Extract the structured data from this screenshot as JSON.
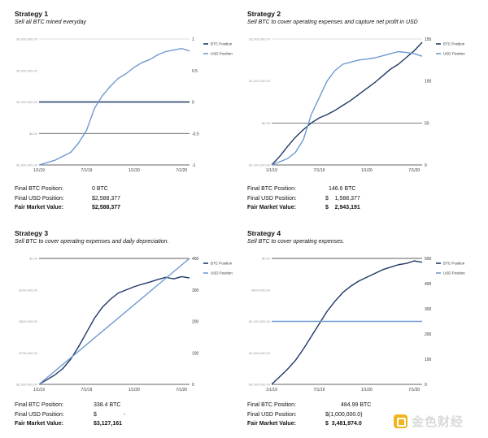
{
  "strategies": [
    {
      "title": "Strategy 1",
      "subtitle": "Sell all BTC mined everyday",
      "summary": [
        {
          "label": "Final BTC Position:",
          "value": "0 BTC",
          "bold": false
        },
        {
          "label": "Final USD Position:",
          "value": "$2,588,377",
          "bold": false
        },
        {
          "label": "Fair Market Value:",
          "value": "$2,588,377",
          "bold": true
        }
      ]
    },
    {
      "title": "Strategy 2",
      "subtitle": "Sell BTC to cover operating expenses and capture net profit in USD",
      "summary": [
        {
          "label": "Final BTC Position:",
          "value": "146.6 BTC",
          "bold": false
        },
        {
          "label": "Final USD Position:",
          "value": "$    1,588,377",
          "bold": false
        },
        {
          "label": "Fair Market Value:",
          "value": "$    2,943,191",
          "bold": true
        }
      ]
    },
    {
      "title": "Strategy 3",
      "subtitle": "Sell BTC to cover operating expenses and daily depreciation.",
      "summary": [
        {
          "label": "Final BTC Position:",
          "value": "338.4 BTC",
          "bold": false
        },
        {
          "label": "Final USD Position:",
          "value": "$                 -",
          "bold": false
        },
        {
          "label": "Fair Market Value:",
          "value": "$3,127,161",
          "bold": true
        }
      ]
    },
    {
      "title": "Strategy 4",
      "subtitle": "Sell BTC to cover operating expenses.",
      "summary": [
        {
          "label": "Final BTC Position:",
          "value": "484.99 BTC",
          "bold": false
        },
        {
          "label": "Final USD Position:",
          "value": "$(1,000,000.0)",
          "bold": false
        },
        {
          "label": "Fair Market Value:",
          "value": "$  3,481,974.0",
          "bold": true
        }
      ]
    }
  ],
  "chart_data": [
    {
      "type": "line",
      "x_tick_labels": [
        "1/1/19",
        "7/1/19",
        "1/1/20",
        "7/1/20"
      ],
      "left_axis": {
        "ticks": [
          -1000000,
          0,
          1000000,
          2000000,
          3000000
        ],
        "tick_labels": [
          "-$1,000,000.00",
          "$0.00",
          "$1,000,000.00",
          "$2,000,000.00",
          "$3,000,000.00"
        ],
        "range": [
          -1000000,
          3000000
        ]
      },
      "right_axis": {
        "ticks": [
          -1,
          -0.5,
          0,
          0.5,
          1
        ],
        "tick_labels": [
          "-1",
          "-0.5",
          "0",
          "0.5",
          "1"
        ],
        "range": [
          -1,
          1
        ]
      },
      "hlines": [
        {
          "axis": "left",
          "value": 0
        },
        {
          "axis": "right",
          "value": 0
        }
      ],
      "legend_position": "right",
      "series": [
        {
          "name": "BTC Position",
          "axis": "right",
          "color": "#1f3864",
          "x": [
            0,
            19
          ],
          "y": [
            0,
            0
          ]
        },
        {
          "name": "USD Position",
          "axis": "left",
          "color": "#6f99d0",
          "x": [
            0,
            2,
            4,
            5,
            6,
            6.5,
            7,
            8,
            9,
            10,
            11,
            12,
            13,
            14,
            15,
            16,
            17,
            18,
            19
          ],
          "y": [
            -1000000,
            -850000,
            -600000,
            -300000,
            100000,
            450000,
            800000,
            1200000,
            1500000,
            1750000,
            1900000,
            2100000,
            2250000,
            2350000,
            2500000,
            2600000,
            2650000,
            2700000,
            2620000
          ]
        }
      ]
    },
    {
      "type": "line",
      "x_tick_labels": [
        "1/1/19",
        "7/1/19",
        "1/1/20",
        "7/1/20"
      ],
      "left_axis": {
        "ticks": [
          -1000000,
          0,
          1000000,
          2000000
        ],
        "tick_labels": [
          "-$1,000,000.00",
          "$0.00",
          "$1,000,000.00",
          "$2,000,000.00"
        ],
        "range": [
          -1000000,
          2000000
        ]
      },
      "right_axis": {
        "ticks": [
          0,
          50,
          100,
          150
        ],
        "tick_labels": [
          "0",
          "50",
          "100",
          "150"
        ],
        "range": [
          0,
          150
        ]
      },
      "hlines": [
        {
          "axis": "left",
          "value": 0
        }
      ],
      "legend_position": "right",
      "series": [
        {
          "name": "BTC Position",
          "axis": "right",
          "color": "#1f3864",
          "x": [
            0,
            1,
            2,
            3,
            4,
            5,
            6,
            7,
            8,
            9,
            10,
            11,
            12,
            13,
            14,
            15,
            16,
            17,
            18,
            19
          ],
          "y": [
            0,
            10,
            22,
            33,
            42,
            50,
            56,
            60,
            65,
            71,
            77,
            84,
            91,
            98,
            106,
            114,
            120,
            128,
            136,
            146
          ]
        },
        {
          "name": "USD Position",
          "axis": "left",
          "color": "#6f99d0",
          "x": [
            0,
            2,
            3,
            4,
            5,
            6,
            7,
            8,
            9,
            10,
            11,
            12,
            13,
            14,
            15,
            16,
            17,
            18,
            19
          ],
          "y": [
            -1000000,
            -850000,
            -700000,
            -400000,
            200000,
            600000,
            1000000,
            1250000,
            1400000,
            1450000,
            1500000,
            1520000,
            1550000,
            1600000,
            1650000,
            1700000,
            1680000,
            1650000,
            1590000
          ]
        }
      ]
    },
    {
      "type": "line",
      "x_tick_labels": [
        "1/1/19",
        "7/1/19",
        "1/1/20",
        "7/1/20"
      ],
      "left_axis": {
        "ticks": [
          -1000000,
          -750000,
          -500000,
          -250000,
          0
        ],
        "tick_labels": [
          "-$1,000,000.00",
          "-$750,000.00",
          "-$500,000.00",
          "-$250,000.00",
          "$0.00"
        ],
        "range": [
          -1000000,
          0
        ]
      },
      "right_axis": {
        "ticks": [
          0,
          100,
          200,
          300,
          400
        ],
        "tick_labels": [
          "0",
          "100",
          "200",
          "300",
          "400"
        ],
        "range": [
          0,
          400
        ]
      },
      "hlines": [
        {
          "axis": "left",
          "value": 0
        }
      ],
      "legend_position": "right",
      "series": [
        {
          "name": "BTC Position",
          "axis": "right",
          "color": "#1f3864",
          "x": [
            0,
            1,
            2,
            3,
            4,
            5,
            6,
            7,
            8,
            9,
            10,
            11,
            12,
            13,
            14,
            15,
            16,
            17,
            18,
            19
          ],
          "y": [
            0,
            15,
            30,
            50,
            80,
            120,
            165,
            210,
            245,
            270,
            290,
            300,
            310,
            318,
            325,
            333,
            340,
            335,
            342,
            338
          ]
        },
        {
          "name": "USD Position",
          "axis": "left",
          "color": "#6f99d0",
          "x": [
            0,
            19
          ],
          "y": [
            -1000000,
            0
          ]
        }
      ]
    },
    {
      "type": "line",
      "x_tick_labels": [
        "1/1/19",
        "7/1/19",
        "1/1/20",
        "7/1/20"
      ],
      "left_axis": {
        "ticks": [
          -2000000,
          -1500000,
          -1000000,
          -500000,
          0
        ],
        "tick_labels": [
          "-$2,000,000.00",
          "-$1,500,000.00",
          "-$1,000,000.00",
          "-$500,000.00",
          "$0.00"
        ],
        "range": [
          -2000000,
          0
        ]
      },
      "right_axis": {
        "ticks": [
          0,
          100,
          200,
          300,
          400,
          500
        ],
        "tick_labels": [
          "0",
          "100",
          "200",
          "300",
          "400",
          "500"
        ],
        "range": [
          0,
          500
        ]
      },
      "hlines": [
        {
          "axis": "left",
          "value": 0
        }
      ],
      "legend_position": "right",
      "series": [
        {
          "name": "BTC Position",
          "axis": "right",
          "color": "#1f3864",
          "x": [
            0,
            1,
            2,
            3,
            4,
            5,
            6,
            7,
            8,
            9,
            10,
            11,
            12,
            13,
            14,
            15,
            16,
            17,
            18,
            19
          ],
          "y": [
            0,
            30,
            60,
            95,
            140,
            190,
            240,
            290,
            330,
            365,
            390,
            410,
            425,
            440,
            455,
            465,
            475,
            480,
            490,
            485
          ]
        },
        {
          "name": "USD Position",
          "axis": "left",
          "color": "#6f99d0",
          "x": [
            0,
            19
          ],
          "y": [
            -1000000,
            -1000000
          ]
        }
      ]
    }
  ],
  "watermark": {
    "text": "金色财经"
  }
}
